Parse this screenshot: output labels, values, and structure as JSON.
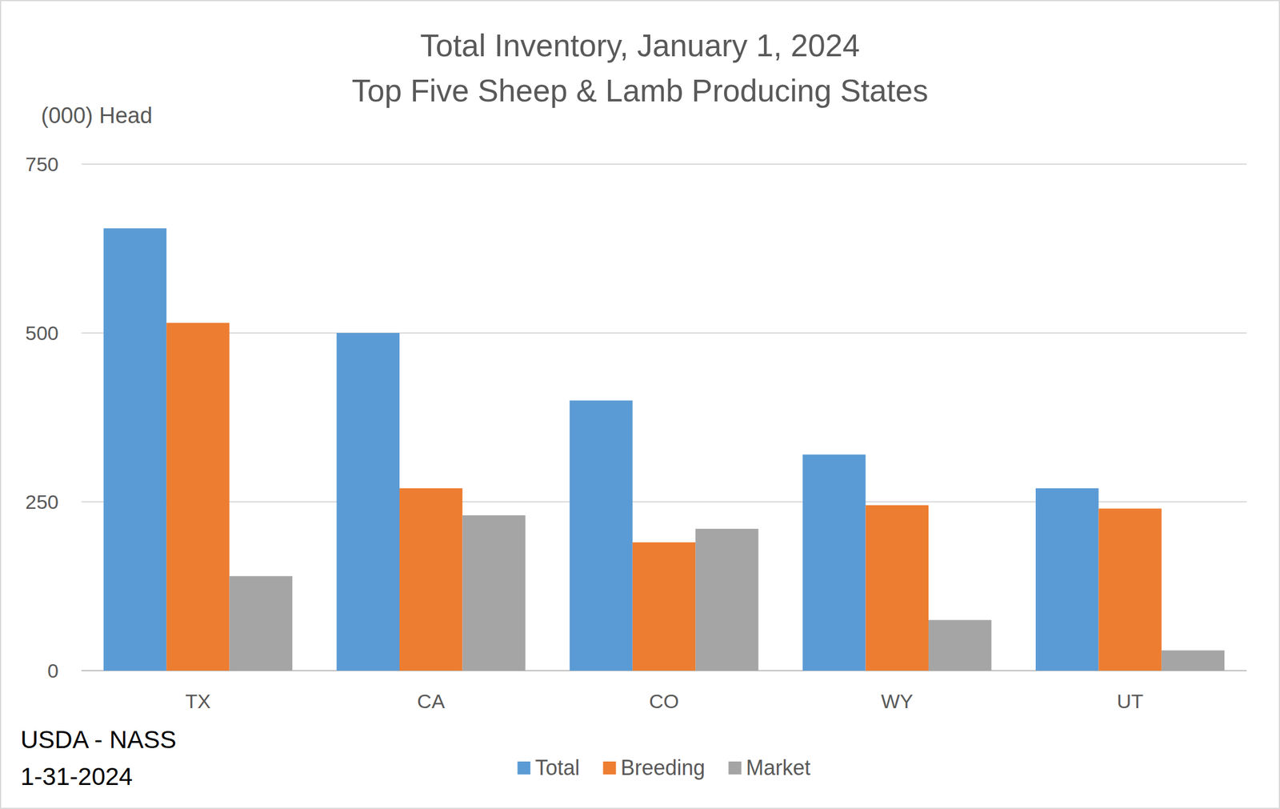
{
  "chart_data": {
    "type": "bar",
    "title": "Total Inventory, January 1, 2024",
    "subtitle": "Top Five Sheep & Lamb Producing States",
    "y_label": "(000) Head",
    "annotations": [
      "USDA - NASS",
      "1-31-2024"
    ],
    "categories": [
      "TX",
      "CA",
      "CO",
      "WY",
      "UT"
    ],
    "series": [
      {
        "name": "Total",
        "color": "#5b9bd5",
        "values": [
          655,
          500,
          400,
          320,
          270
        ]
      },
      {
        "name": "Breeding",
        "color": "#ed7d31",
        "values": [
          515,
          270,
          190,
          245,
          240
        ]
      },
      {
        "name": "Market",
        "color": "#a5a5a5",
        "values": [
          140,
          230,
          210,
          75,
          30
        ]
      }
    ],
    "ylim": [
      0,
      750
    ],
    "yticks": [
      0,
      250,
      500,
      750
    ],
    "grid": true,
    "legend": "bottom"
  }
}
